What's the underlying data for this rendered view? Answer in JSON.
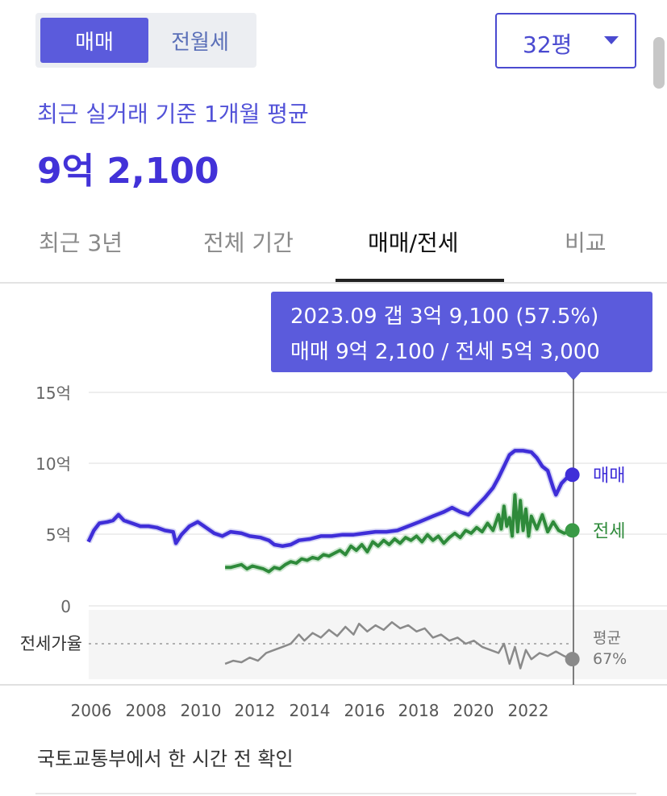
{
  "deal_type_tabs": [
    {
      "label": "매매",
      "active": true
    },
    {
      "label": "전월세",
      "active": false
    }
  ],
  "size_select": {
    "value": "32평"
  },
  "summary": {
    "subtitle": "최근 실거래 기준 1개월 평균",
    "price": "9억 2,100"
  },
  "period_tabs": [
    {
      "label": "최근 3년",
      "active": false
    },
    {
      "label": "전체 기간",
      "active": false
    },
    {
      "label": "매매/전세",
      "active": true
    },
    {
      "label": "비교",
      "active": false
    }
  ],
  "tooltip": {
    "line1": "2023.09  갭 3억 9,100 (57.5%)",
    "line2": "매매 9억 2,100 / 전세 5억 3,000"
  },
  "footer": {
    "source_text": "국토교통부에서 한 시간 전 확인"
  },
  "colors": {
    "accent": "#5b5bdc",
    "sale_line": "#3f2ed8",
    "jeonse_line": "#2e8a3a",
    "ratio_line": "#8a8a8a",
    "grid": "#e8e8e8"
  },
  "chart_data": [
    {
      "type": "line",
      "x_ticks": [
        "2006",
        "2008",
        "2010",
        "2012",
        "2014",
        "2016",
        "2018",
        "2020",
        "2022"
      ],
      "y_ticks": [
        "15억",
        "10억",
        "5억",
        "0"
      ],
      "ylim": [
        0,
        15
      ],
      "y_unit": "억",
      "grid": true,
      "series": [
        {
          "name": "매매",
          "color": "#3f2ed8",
          "points": [
            [
              2005.9,
              4.5
            ],
            [
              2006.1,
              5.3
            ],
            [
              2006.3,
              5.8
            ],
            [
              2006.6,
              5.9
            ],
            [
              2006.8,
              6.0
            ],
            [
              2007.0,
              6.4
            ],
            [
              2007.2,
              6.0
            ],
            [
              2007.5,
              5.8
            ],
            [
              2007.8,
              5.6
            ],
            [
              2008.1,
              5.6
            ],
            [
              2008.4,
              5.5
            ],
            [
              2008.7,
              5.3
            ],
            [
              2009.0,
              5.2
            ],
            [
              2009.1,
              4.4
            ],
            [
              2009.3,
              5.0
            ],
            [
              2009.6,
              5.6
            ],
            [
              2009.9,
              5.9
            ],
            [
              2010.2,
              5.5
            ],
            [
              2010.5,
              5.1
            ],
            [
              2010.8,
              4.9
            ],
            [
              2011.1,
              5.2
            ],
            [
              2011.5,
              5.1
            ],
            [
              2011.8,
              4.9
            ],
            [
              2012.2,
              4.8
            ],
            [
              2012.5,
              4.6
            ],
            [
              2012.7,
              4.3
            ],
            [
              2013.0,
              4.2
            ],
            [
              2013.3,
              4.3
            ],
            [
              2013.6,
              4.6
            ],
            [
              2014.0,
              4.7
            ],
            [
              2014.4,
              4.9
            ],
            [
              2014.8,
              4.9
            ],
            [
              2015.2,
              5.0
            ],
            [
              2015.6,
              5.0
            ],
            [
              2016.0,
              5.1
            ],
            [
              2016.4,
              5.2
            ],
            [
              2016.8,
              5.2
            ],
            [
              2017.2,
              5.3
            ],
            [
              2017.6,
              5.6
            ],
            [
              2018.0,
              5.9
            ],
            [
              2018.5,
              6.3
            ],
            [
              2018.9,
              6.6
            ],
            [
              2019.2,
              6.9
            ],
            [
              2019.5,
              6.6
            ],
            [
              2019.8,
              6.4
            ],
            [
              2020.1,
              7.0
            ],
            [
              2020.4,
              7.6
            ],
            [
              2020.7,
              8.3
            ],
            [
              2020.9,
              9.0
            ],
            [
              2021.1,
              9.8
            ],
            [
              2021.3,
              10.6
            ],
            [
              2021.5,
              10.9
            ],
            [
              2021.8,
              10.9
            ],
            [
              2022.1,
              10.8
            ],
            [
              2022.3,
              10.4
            ],
            [
              2022.5,
              9.8
            ],
            [
              2022.7,
              9.5
            ],
            [
              2022.9,
              8.3
            ],
            [
              2023.0,
              7.8
            ],
            [
              2023.2,
              8.6
            ],
            [
              2023.4,
              9.0
            ],
            [
              2023.6,
              9.21
            ]
          ]
        },
        {
          "name": "전세",
          "color": "#2e8a3a",
          "points": [
            [
              2010.9,
              2.7
            ],
            [
              2011.1,
              2.7
            ],
            [
              2011.3,
              2.8
            ],
            [
              2011.5,
              2.9
            ],
            [
              2011.7,
              2.6
            ],
            [
              2011.9,
              2.8
            ],
            [
              2012.1,
              2.7
            ],
            [
              2012.3,
              2.6
            ],
            [
              2012.5,
              2.4
            ],
            [
              2012.7,
              2.7
            ],
            [
              2012.9,
              2.6
            ],
            [
              2013.1,
              2.9
            ],
            [
              2013.3,
              3.1
            ],
            [
              2013.5,
              3.0
            ],
            [
              2013.7,
              3.3
            ],
            [
              2013.9,
              3.2
            ],
            [
              2014.1,
              3.4
            ],
            [
              2014.3,
              3.3
            ],
            [
              2014.5,
              3.6
            ],
            [
              2014.7,
              3.5
            ],
            [
              2014.9,
              3.7
            ],
            [
              2015.1,
              3.9
            ],
            [
              2015.3,
              3.6
            ],
            [
              2015.5,
              4.2
            ],
            [
              2015.7,
              3.9
            ],
            [
              2015.9,
              4.3
            ],
            [
              2016.1,
              3.8
            ],
            [
              2016.3,
              4.5
            ],
            [
              2016.5,
              4.2
            ],
            [
              2016.7,
              4.6
            ],
            [
              2016.9,
              4.3
            ],
            [
              2017.1,
              4.7
            ],
            [
              2017.3,
              4.4
            ],
            [
              2017.5,
              4.8
            ],
            [
              2017.7,
              4.6
            ],
            [
              2017.9,
              4.9
            ],
            [
              2018.1,
              4.5
            ],
            [
              2018.3,
              5.0
            ],
            [
              2018.5,
              4.6
            ],
            [
              2018.7,
              4.9
            ],
            [
              2018.9,
              4.4
            ],
            [
              2019.1,
              4.8
            ],
            [
              2019.3,
              5.1
            ],
            [
              2019.5,
              4.8
            ],
            [
              2019.7,
              5.3
            ],
            [
              2019.9,
              5.1
            ],
            [
              2020.1,
              5.5
            ],
            [
              2020.3,
              5.2
            ],
            [
              2020.5,
              5.8
            ],
            [
              2020.7,
              5.3
            ],
            [
              2020.9,
              6.4
            ],
            [
              2021.0,
              5.4
            ],
            [
              2021.1,
              7.0
            ],
            [
              2021.2,
              5.6
            ],
            [
              2021.3,
              6.2
            ],
            [
              2021.4,
              4.9
            ],
            [
              2021.5,
              7.8
            ],
            [
              2021.6,
              5.2
            ],
            [
              2021.7,
              7.4
            ],
            [
              2021.8,
              5.3
            ],
            [
              2021.9,
              6.8
            ],
            [
              2022.0,
              4.9
            ],
            [
              2022.1,
              6.3
            ],
            [
              2022.3,
              5.4
            ],
            [
              2022.5,
              6.4
            ],
            [
              2022.7,
              5.2
            ],
            [
              2022.9,
              5.9
            ],
            [
              2023.1,
              5.3
            ],
            [
              2023.3,
              5.1
            ],
            [
              2023.6,
              5.3
            ]
          ]
        }
      ]
    },
    {
      "type": "line",
      "title": "전세가율",
      "x_ticks": [
        "2006",
        "2008",
        "2010",
        "2012",
        "2014",
        "2016",
        "2018",
        "2020",
        "2022"
      ],
      "y_unit": "%",
      "average_label": "평균",
      "average_value": "67%",
      "series": [
        {
          "color": "#8a8a8a",
          "points": [
            [
              2010.9,
              55
            ],
            [
              2011.2,
              57
            ],
            [
              2011.5,
              56
            ],
            [
              2011.8,
              59
            ],
            [
              2012.1,
              57
            ],
            [
              2012.4,
              62
            ],
            [
              2012.7,
              64
            ],
            [
              2013.0,
              66
            ],
            [
              2013.3,
              68
            ],
            [
              2013.6,
              74
            ],
            [
              2013.8,
              70
            ],
            [
              2014.1,
              75
            ],
            [
              2014.4,
              72
            ],
            [
              2014.7,
              77
            ],
            [
              2015.0,
              73
            ],
            [
              2015.3,
              79
            ],
            [
              2015.6,
              74
            ],
            [
              2015.8,
              81
            ],
            [
              2016.1,
              76
            ],
            [
              2016.4,
              80
            ],
            [
              2016.7,
              77
            ],
            [
              2017.0,
              82
            ],
            [
              2017.3,
              78
            ],
            [
              2017.6,
              80
            ],
            [
              2017.9,
              76
            ],
            [
              2018.2,
              78
            ],
            [
              2018.5,
              72
            ],
            [
              2018.8,
              74
            ],
            [
              2019.1,
              70
            ],
            [
              2019.4,
              72
            ],
            [
              2019.7,
              68
            ],
            [
              2020.0,
              70
            ],
            [
              2020.3,
              66
            ],
            [
              2020.6,
              64
            ],
            [
              2020.9,
              62
            ],
            [
              2021.1,
              68
            ],
            [
              2021.3,
              55
            ],
            [
              2021.5,
              66
            ],
            [
              2021.7,
              52
            ],
            [
              2021.9,
              64
            ],
            [
              2022.1,
              58
            ],
            [
              2022.4,
              62
            ],
            [
              2022.7,
              60
            ],
            [
              2023.0,
              63
            ],
            [
              2023.3,
              60
            ],
            [
              2023.6,
              58
            ]
          ]
        }
      ]
    }
  ]
}
